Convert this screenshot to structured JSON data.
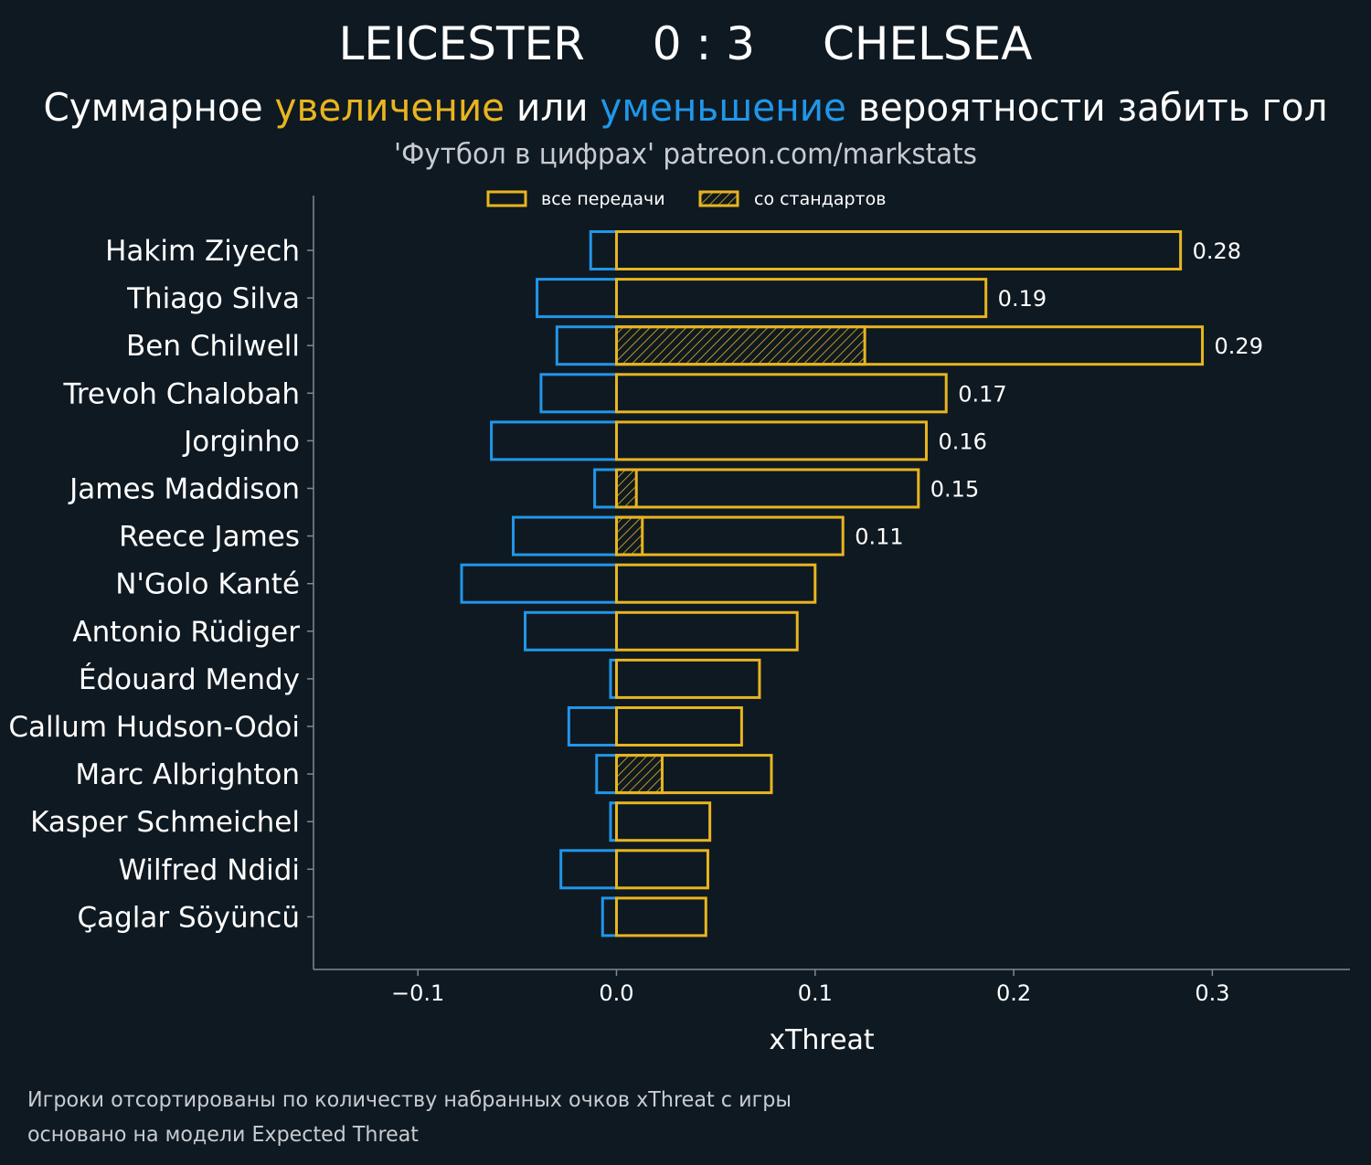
{
  "header": {
    "home_team": "LEICESTER",
    "score": "0 : 3",
    "away_team": "CHELSEA",
    "subtitle_part1": "Суммарное ",
    "subtitle_up": "увеличение",
    "subtitle_part2": " или ",
    "subtitle_down": "уменьшение",
    "subtitle_part3": " вероятности забить гол",
    "credit": "'Футбол в цифрах' patreon.com/markstats"
  },
  "legend": {
    "all_passes": "все передачи",
    "set_pieces": "со стандартов"
  },
  "footer": {
    "line1": "Игроки отсортированы по количеству набранных очков xThreat с игры",
    "line2": "основано на модели Expected Threat"
  },
  "colors": {
    "background": "#0f1921",
    "positive": "#e8b520",
    "negative": "#2196e8",
    "axis": "#7e8a91",
    "text": "#ffffff",
    "muted": "#c8ccd0"
  },
  "chart_data": {
    "type": "bar",
    "orientation": "horizontal",
    "xlabel": "xThreat",
    "xlim": [
      -0.153,
      0.368
    ],
    "xticks": [
      -0.1,
      0.0,
      0.1,
      0.2,
      0.3
    ],
    "xtick_labels": [
      "−0.1",
      "0.0",
      "0.1",
      "0.2",
      "0.3"
    ],
    "categories": [
      "Hakim Ziyech",
      "Thiago Silva",
      "Ben Chilwell",
      "Trevoh Chalobah",
      "Jorginho",
      "James Maddison",
      "Reece James",
      "N'Golo Kanté",
      "Antonio Rüdiger",
      "Édouard Mendy",
      "Callum Hudson-Odoi",
      "Marc Albrighton",
      "Kasper Schmeichel",
      "Wilfred Ndidi",
      "Çaglar Söyüncü"
    ],
    "series": [
      {
        "name": "increase (все передачи)",
        "values": [
          0.284,
          0.186,
          0.295,
          0.166,
          0.156,
          0.152,
          0.114,
          0.1,
          0.091,
          0.072,
          0.063,
          0.078,
          0.047,
          0.046,
          0.045
        ]
      },
      {
        "name": "decrease (все передачи)",
        "values": [
          -0.013,
          -0.04,
          -0.03,
          -0.038,
          -0.063,
          -0.011,
          -0.052,
          -0.078,
          -0.046,
          -0.003,
          -0.024,
          -0.01,
          -0.003,
          -0.028,
          -0.007
        ]
      },
      {
        "name": "со стандартов",
        "values": [
          0,
          0,
          0.125,
          0,
          0,
          0.01,
          0.013,
          0,
          0,
          0,
          0,
          0.023,
          0,
          0,
          0
        ]
      }
    ],
    "data_labels": [
      "0.28",
      "0.19",
      "0.29",
      "0.17",
      "0.16",
      "0.15",
      "0.11",
      "",
      "",
      "",
      "",
      "",
      "",
      "",
      ""
    ]
  }
}
